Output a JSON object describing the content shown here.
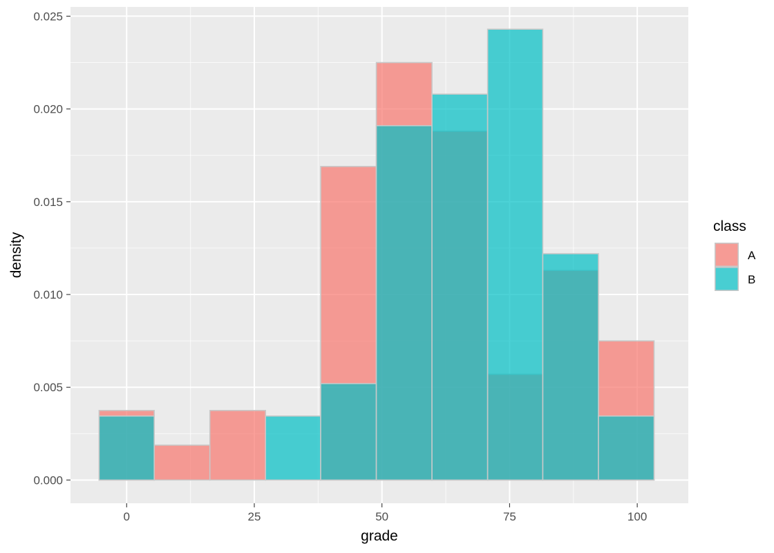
{
  "chart_data": {
    "type": "bar",
    "subtype": "overlapping histogram",
    "xlabel": "grade",
    "ylabel": "density",
    "xlim": [
      -11,
      110
    ],
    "ylim": [
      -0.00125,
      0.0255
    ],
    "x_ticks": [
      0,
      25,
      50,
      75,
      100
    ],
    "x_tick_labels": [
      "0",
      "25",
      "50",
      "75",
      "100"
    ],
    "y_ticks": [
      0,
      0.005,
      0.01,
      0.015,
      0.02,
      0.025
    ],
    "y_tick_labels": [
      "0.000",
      "0.005",
      "0.010",
      "0.015",
      "0.020",
      "0.025"
    ],
    "grid": true,
    "bin_edges": [
      -5.4,
      5.4,
      16.3,
      27.2,
      38.0,
      48.9,
      59.8,
      70.7,
      81.5,
      92.4,
      103.3
    ],
    "series": [
      {
        "name": "A",
        "color": "#f8766d",
        "values": [
          0.00375,
          0.00188,
          0.00375,
          0.0,
          0.0169,
          0.0225,
          0.0188,
          0.0057,
          0.0113,
          0.0075
        ]
      },
      {
        "name": "B",
        "color": "#00bfc4",
        "values": [
          0.00345,
          0.0,
          0.0,
          0.00345,
          0.0052,
          0.0191,
          0.0208,
          0.0243,
          0.0122,
          0.00345
        ]
      }
    ],
    "legend": {
      "title": "class",
      "position": "right",
      "items": [
        "A",
        "B"
      ]
    },
    "alpha": 0.7
  }
}
